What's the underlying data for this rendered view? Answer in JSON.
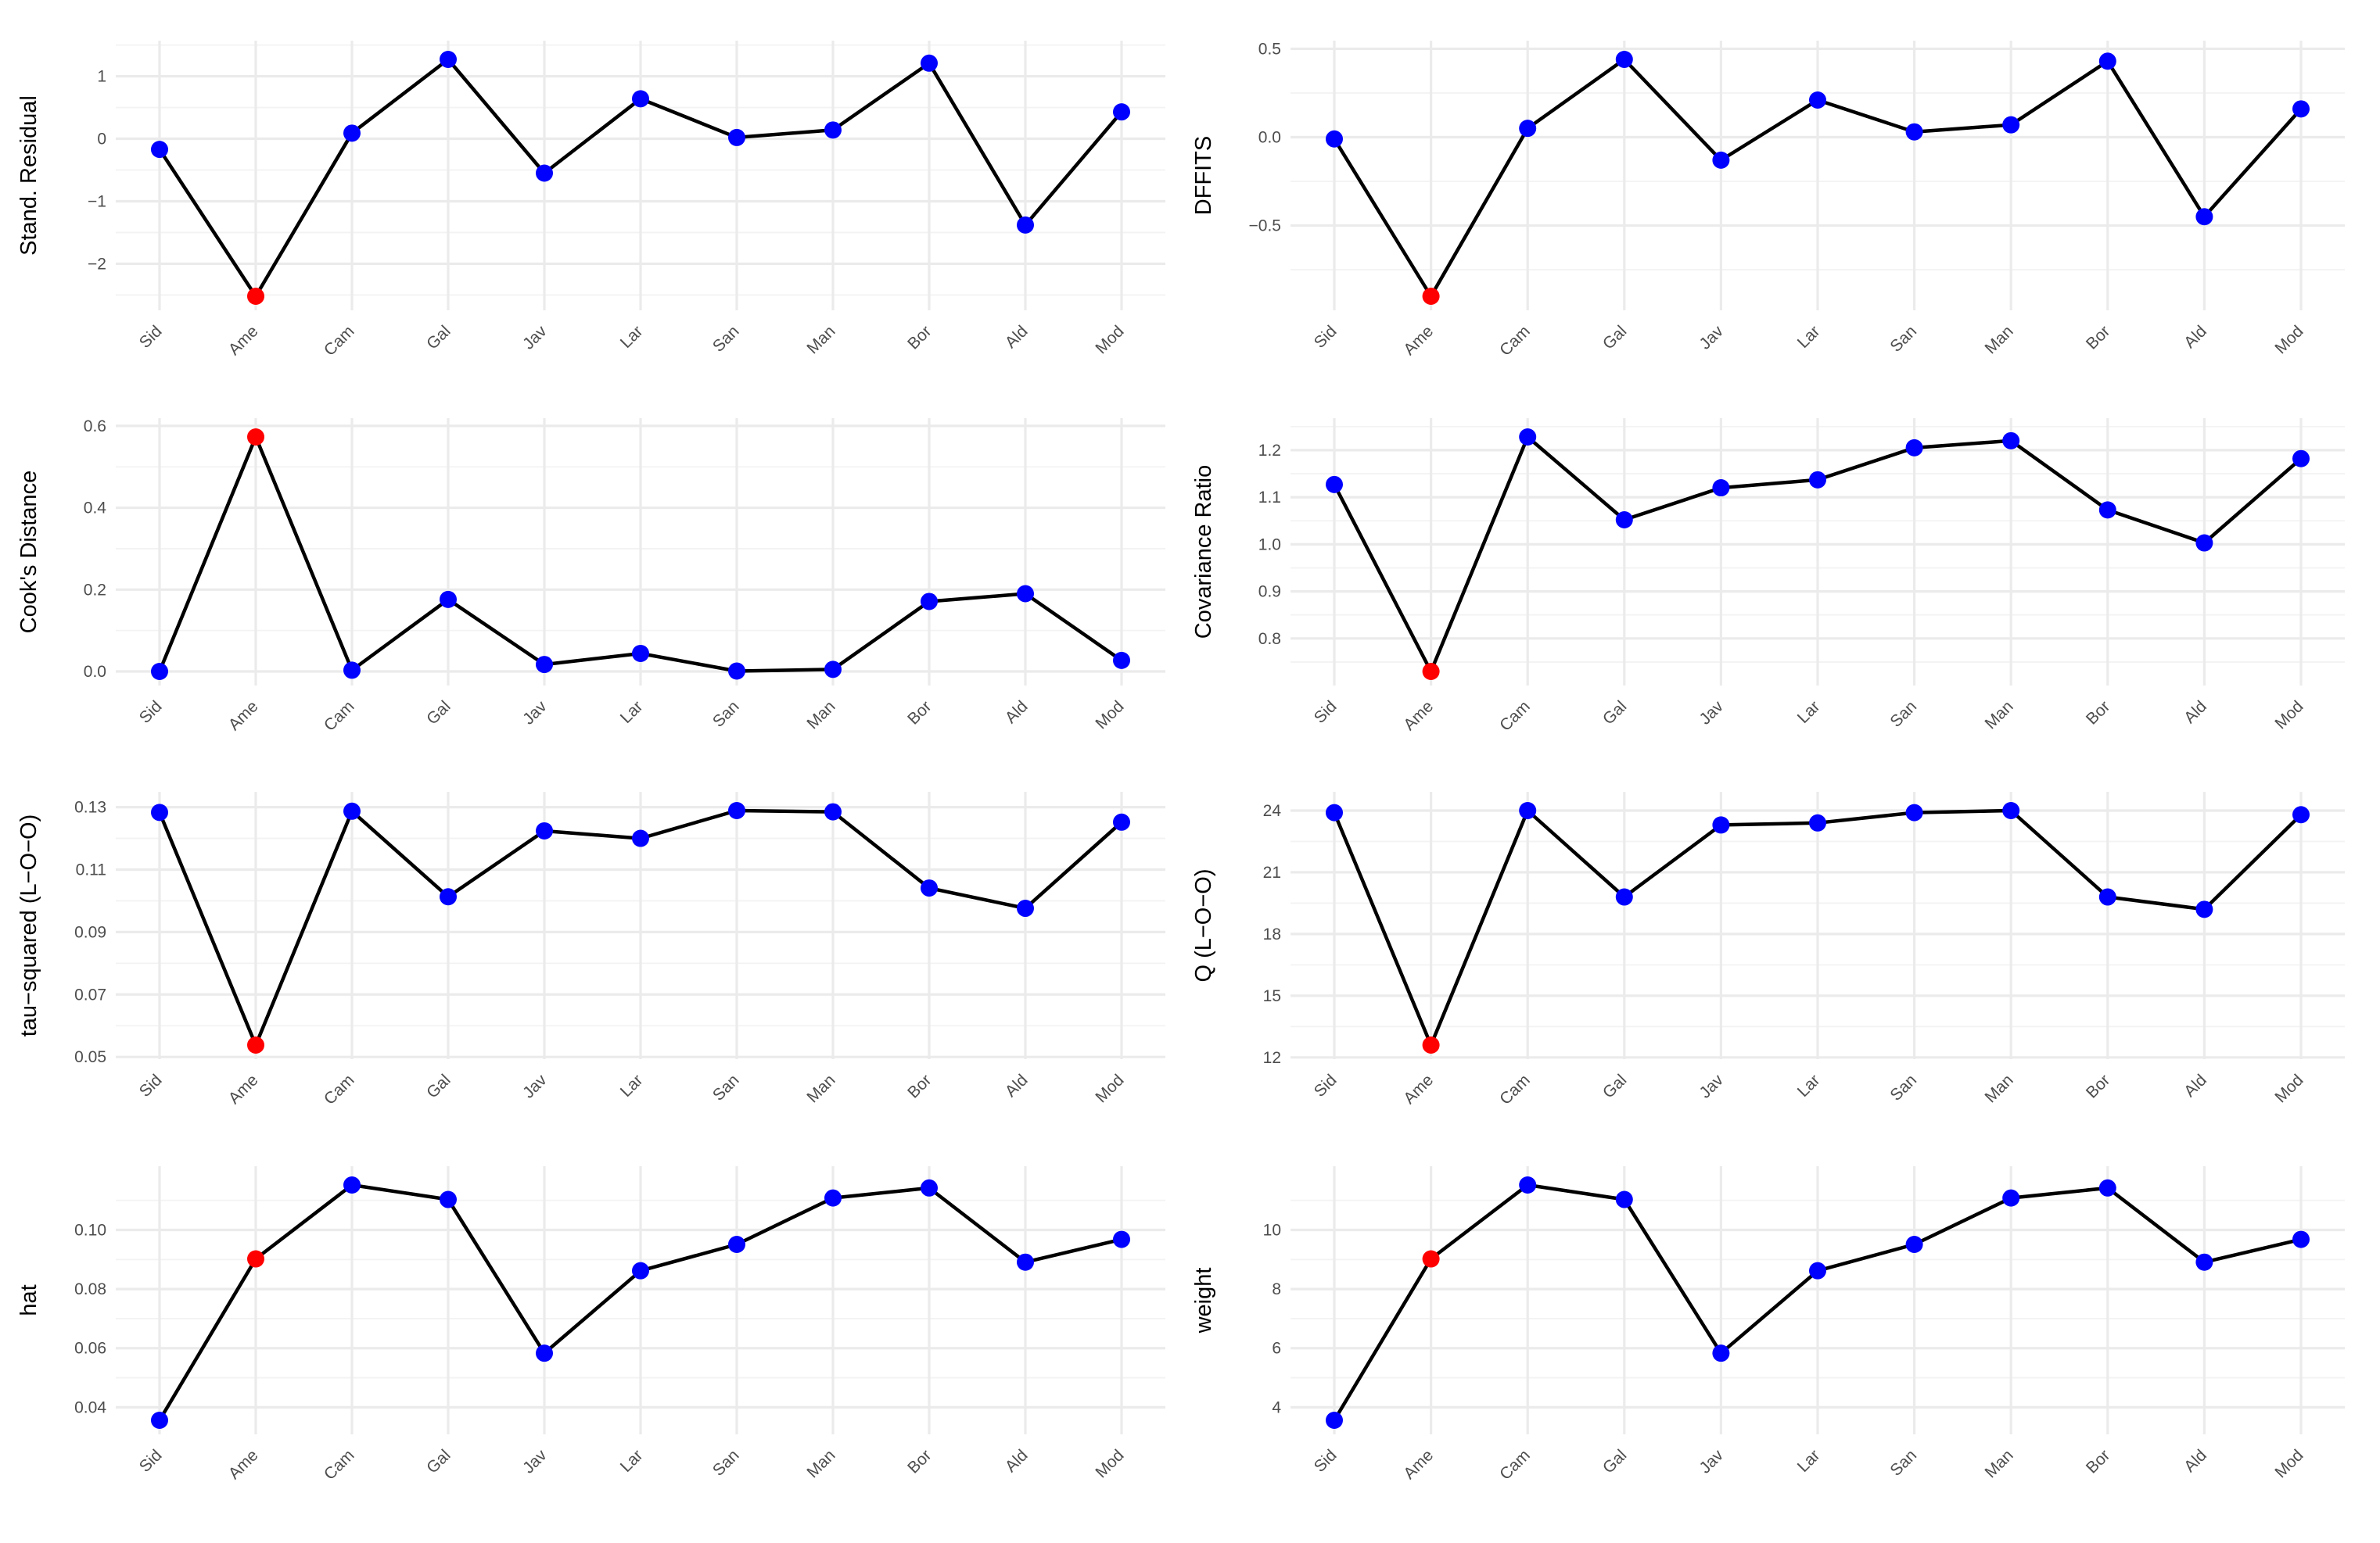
{
  "chart_data": [
    {
      "type": "line",
      "ylabel": "Stand. Residual",
      "categories": [
        "Sid",
        "Ame",
        "Cam",
        "Gal",
        "Jav",
        "Lar",
        "San",
        "Man",
        "Bor",
        "Ald",
        "Mod"
      ],
      "values": [
        -0.17,
        -2.52,
        0.09,
        1.27,
        -0.55,
        0.64,
        0.02,
        0.14,
        1.21,
        -1.38,
        0.43
      ],
      "highlight_index": 1,
      "ylim": [
        -2.52,
        1.27
      ],
      "yticks": [
        -2,
        -1,
        0,
        1
      ],
      "ytick_labels": [
        "−2",
        "−1",
        "0",
        "1"
      ],
      "grid": true,
      "colors": {
        "point": "#0000ff",
        "highlight": "#ff0000",
        "line": "#000000"
      }
    },
    {
      "type": "line",
      "ylabel": "DFFITS",
      "categories": [
        "Sid",
        "Ame",
        "Cam",
        "Gal",
        "Jav",
        "Lar",
        "San",
        "Man",
        "Bor",
        "Ald",
        "Mod"
      ],
      "values": [
        -0.01,
        -0.9,
        0.05,
        0.44,
        -0.13,
        0.21,
        0.03,
        0.07,
        0.43,
        -0.45,
        0.16
      ],
      "highlight_index": 1,
      "ylim": [
        -0.9,
        0.44
      ],
      "yticks": [
        -0.5,
        0.0,
        0.5
      ],
      "ytick_labels": [
        "−0.5",
        "0.0",
        "0.5"
      ],
      "grid": true,
      "colors": {
        "point": "#0000ff",
        "highlight": "#ff0000",
        "line": "#000000"
      }
    },
    {
      "type": "line",
      "ylabel": "Cook's Distance",
      "categories": [
        "Sid",
        "Ame",
        "Cam",
        "Gal",
        "Jav",
        "Lar",
        "San",
        "Man",
        "Bor",
        "Ald",
        "Mod"
      ],
      "values": [
        0.0,
        0.573,
        0.003,
        0.176,
        0.017,
        0.044,
        0.001,
        0.005,
        0.171,
        0.19,
        0.027
      ],
      "highlight_index": 1,
      "ylim": [
        0,
        0.573
      ],
      "yticks": [
        0.0,
        0.2,
        0.4,
        0.6
      ],
      "ytick_labels": [
        "0.0",
        "0.2",
        "0.4",
        "0.6"
      ],
      "grid": true,
      "colors": {
        "point": "#0000ff",
        "highlight": "#ff0000",
        "line": "#000000"
      }
    },
    {
      "type": "line",
      "ylabel": "Covariance Ratio",
      "categories": [
        "Sid",
        "Ame",
        "Cam",
        "Gal",
        "Jav",
        "Lar",
        "San",
        "Man",
        "Bor",
        "Ald",
        "Mod"
      ],
      "values": [
        1.127,
        0.73,
        1.228,
        1.052,
        1.12,
        1.137,
        1.205,
        1.22,
        1.073,
        1.003,
        1.182
      ],
      "highlight_index": 1,
      "ylim": [
        0.73,
        1.228
      ],
      "yticks": [
        0.8,
        0.9,
        1.0,
        1.1,
        1.2
      ],
      "ytick_labels": [
        "0.8",
        "0.9",
        "1.0",
        "1.1",
        "1.2"
      ],
      "grid": true,
      "colors": {
        "point": "#0000ff",
        "highlight": "#ff0000",
        "line": "#000000"
      }
    },
    {
      "type": "line",
      "ylabel": "tau−squared (L−O−O)",
      "categories": [
        "Sid",
        "Ame",
        "Cam",
        "Gal",
        "Jav",
        "Lar",
        "San",
        "Man",
        "Bor",
        "Ald",
        "Mod"
      ],
      "values": [
        0.1283,
        0.0538,
        0.1287,
        0.1013,
        0.1224,
        0.12,
        0.1289,
        0.1285,
        0.1041,
        0.0976,
        0.1252
      ],
      "highlight_index": 1,
      "ylim": [
        0.0538,
        0.1289
      ],
      "yticks": [
        0.05,
        0.07,
        0.09,
        0.11,
        0.13
      ],
      "ytick_labels": [
        "0.05",
        "0.07",
        "0.09",
        "0.11",
        "0.13"
      ],
      "grid": true,
      "colors": {
        "point": "#0000ff",
        "highlight": "#ff0000",
        "line": "#000000"
      }
    },
    {
      "type": "line",
      "ylabel": "Q (L−O−O)",
      "categories": [
        "Sid",
        "Ame",
        "Cam",
        "Gal",
        "Jav",
        "Lar",
        "San",
        "Man",
        "Bor",
        "Ald",
        "Mod"
      ],
      "values": [
        23.9,
        12.6,
        24.0,
        19.8,
        23.3,
        23.4,
        23.9,
        24.0,
        19.8,
        19.2,
        23.8
      ],
      "highlight_index": 1,
      "ylim": [
        12.6,
        24.0
      ],
      "yticks": [
        12,
        15,
        18,
        21,
        24
      ],
      "ytick_labels": [
        "12",
        "15",
        "18",
        "21",
        "24"
      ],
      "grid": true,
      "colors": {
        "point": "#0000ff",
        "highlight": "#ff0000",
        "line": "#000000"
      }
    },
    {
      "type": "line",
      "ylabel": "hat",
      "categories": [
        "Sid",
        "Ame",
        "Cam",
        "Gal",
        "Jav",
        "Lar",
        "San",
        "Man",
        "Bor",
        "Ald",
        "Mod"
      ],
      "values": [
        0.0356,
        0.0902,
        0.1152,
        0.1103,
        0.0583,
        0.0862,
        0.0951,
        0.1108,
        0.1142,
        0.0891,
        0.0968
      ],
      "highlight_index": 1,
      "ylim": [
        0.0356,
        0.1152
      ],
      "yticks": [
        0.04,
        0.06,
        0.08,
        0.1
      ],
      "ytick_labels": [
        "0.04",
        "0.06",
        "0.08",
        "0.10"
      ],
      "grid": true,
      "colors": {
        "point": "#0000ff",
        "highlight": "#ff0000",
        "line": "#000000"
      }
    },
    {
      "type": "line",
      "ylabel": "weight",
      "categories": [
        "Sid",
        "Ame",
        "Cam",
        "Gal",
        "Jav",
        "Lar",
        "San",
        "Man",
        "Bor",
        "Ald",
        "Mod"
      ],
      "values": [
        3.56,
        9.02,
        11.52,
        11.03,
        5.83,
        8.62,
        9.51,
        11.08,
        11.42,
        8.91,
        9.68
      ],
      "highlight_index": 1,
      "ylim": [
        3.56,
        11.52
      ],
      "yticks": [
        4,
        6,
        8,
        10
      ],
      "ytick_labels": [
        "4",
        "6",
        "8",
        "10"
      ],
      "grid": true,
      "colors": {
        "point": "#0000ff",
        "highlight": "#ff0000",
        "line": "#000000"
      }
    }
  ]
}
